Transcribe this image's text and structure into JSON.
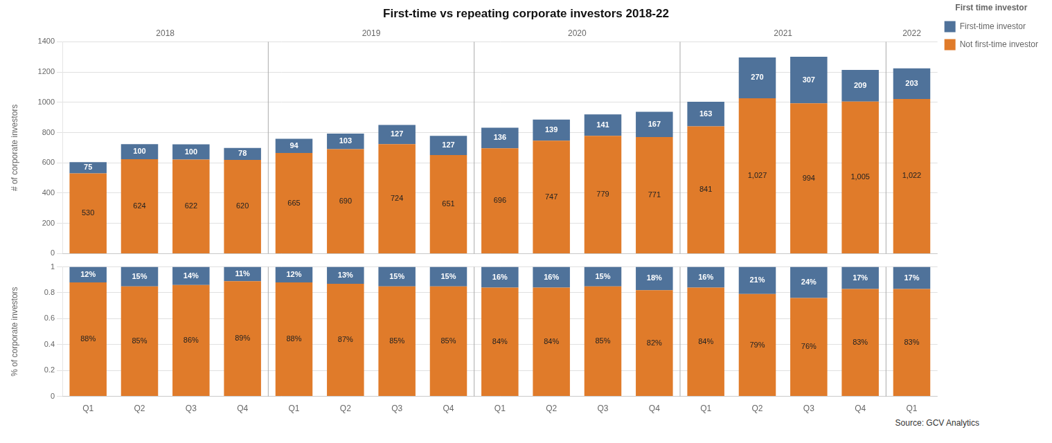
{
  "chart_data": [
    {
      "type": "bar",
      "title": "First-time vs repeating corporate investors 2018-22",
      "ylabel": "# of corporate investors",
      "categories": [
        "Q1",
        "Q2",
        "Q3",
        "Q4",
        "Q1",
        "Q2",
        "Q3",
        "Q4",
        "Q1",
        "Q2",
        "Q3",
        "Q4",
        "Q1",
        "Q2",
        "Q3",
        "Q4",
        "Q1"
      ],
      "groups": [
        {
          "label": "2018",
          "size": 4
        },
        {
          "label": "2019",
          "size": 4
        },
        {
          "label": "2020",
          "size": 4
        },
        {
          "label": "2021",
          "size": 4
        },
        {
          "label": "2022",
          "size": 1
        }
      ],
      "series": [
        {
          "name": "Not first-time investor",
          "color": "#e07b2a",
          "values": [
            530,
            624,
            622,
            620,
            665,
            690,
            724,
            651,
            696,
            747,
            779,
            771,
            841,
            1027,
            994,
            1005,
            1022
          ],
          "value_labels": [
            "530",
            "624",
            "622",
            "620",
            "665",
            "690",
            "724",
            "651",
            "696",
            "747",
            "779",
            "771",
            "841",
            "1,027",
            "994",
            "1,005",
            "1,022"
          ]
        },
        {
          "name": "First-time investor",
          "color": "#4f729a",
          "values": [
            75,
            100,
            100,
            78,
            94,
            103,
            127,
            127,
            136,
            139,
            141,
            167,
            163,
            270,
            307,
            209,
            203
          ]
        }
      ],
      "stacked": true,
      "data_labels": true,
      "ylim": [
        0,
        1400
      ],
      "yticks": [
        0,
        200,
        400,
        600,
        800,
        1000,
        1200,
        1400
      ],
      "grid": true,
      "legend": "right",
      "legend_title": "First time investor",
      "tick_labels": "y"
    },
    {
      "type": "bar",
      "ylabel": "% of corporate investors",
      "categories": [
        "Q1",
        "Q2",
        "Q3",
        "Q4",
        "Q1",
        "Q2",
        "Q3",
        "Q4",
        "Q1",
        "Q2",
        "Q3",
        "Q4",
        "Q1",
        "Q2",
        "Q3",
        "Q4",
        "Q1"
      ],
      "series": [
        {
          "name": "Not first-time investor",
          "color": "#e07b2a",
          "values": [
            0.88,
            0.85,
            0.86,
            0.89,
            0.88,
            0.87,
            0.85,
            0.85,
            0.84,
            0.84,
            0.85,
            0.82,
            0.84,
            0.79,
            0.76,
            0.83,
            0.83
          ],
          "value_labels": [
            "88%",
            "85%",
            "86%",
            "89%",
            "88%",
            "87%",
            "85%",
            "85%",
            "84%",
            "84%",
            "85%",
            "82%",
            "84%",
            "79%",
            "76%",
            "83%",
            "83%"
          ]
        },
        {
          "name": "First-time investor",
          "color": "#4f729a",
          "values": [
            0.12,
            0.15,
            0.14,
            0.11,
            0.12,
            0.13,
            0.15,
            0.15,
            0.16,
            0.16,
            0.15,
            0.18,
            0.16,
            0.21,
            0.24,
            0.17,
            0.17
          ],
          "value_labels": [
            "12%",
            "15%",
            "14%",
            "11%",
            "12%",
            "13%",
            "15%",
            "15%",
            "16%",
            "16%",
            "15%",
            "18%",
            "16%",
            "21%",
            "24%",
            "17%",
            "17%"
          ]
        }
      ],
      "stacked": true,
      "data_labels": true,
      "ylim": [
        0,
        1
      ],
      "yticks": [
        0,
        0.2,
        0.4,
        0.6,
        0.8,
        1
      ],
      "grid": true,
      "annotations": [
        "Source: GCV Analytics"
      ]
    }
  ]
}
